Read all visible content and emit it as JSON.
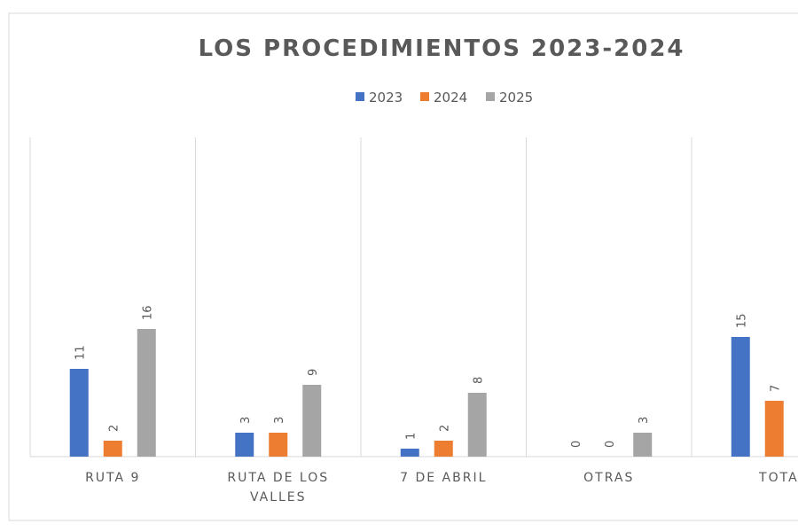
{
  "chart_data": {
    "type": "bar",
    "title": "LOS PROCEDIMIENTOS 2023-2024",
    "categories": [
      [
        "RUTA 9"
      ],
      [
        "RUTA DE LOS",
        "VALLES"
      ],
      [
        "7 DE ABRIL"
      ],
      [
        "OTRAS"
      ],
      [
        "TOTAL"
      ]
    ],
    "series": [
      {
        "name": "2023",
        "color": "#4472C4",
        "values": [
          11,
          3,
          1,
          0,
          15
        ]
      },
      {
        "name": "2024",
        "color": "#ED7D31",
        "values": [
          2,
          3,
          2,
          0,
          7
        ]
      },
      {
        "name": "2025",
        "color": "#A5A5A5",
        "values": [
          16,
          9,
          8,
          3,
          null
        ]
      }
    ],
    "ylim": [
      0,
      40
    ],
    "legend": "top",
    "grid": "vertical category separators",
    "data_labels": "rotated vertical"
  }
}
